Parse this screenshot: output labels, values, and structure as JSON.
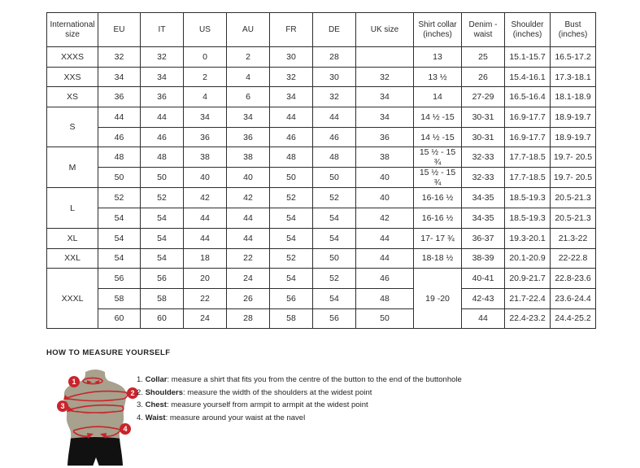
{
  "size_chart": {
    "headers": [
      "International size",
      "EU",
      "IT",
      "US",
      "AU",
      "FR",
      "DE",
      "UK size",
      "Shirt collar (inches)",
      "Denim - waist",
      "Shoulder (inches)",
      "Bust (inches)"
    ],
    "groups": [
      {
        "size": "XXXS",
        "rows": [
          [
            "32",
            "32",
            "0",
            "2",
            "30",
            "28",
            "",
            "13",
            "25",
            "15.1-15.7",
            "16.5-17.2"
          ]
        ]
      },
      {
        "size": "XXS",
        "rows": [
          [
            "34",
            "34",
            "2",
            "4",
            "32",
            "30",
            "32",
            "13 ½",
            "26",
            "15.4-16.1",
            "17.3-18.1"
          ]
        ]
      },
      {
        "size": "XS",
        "rows": [
          [
            "36",
            "36",
            "4",
            "6",
            "34",
            "32",
            "34",
            "14",
            "27-29",
            "16.5-16.4",
            "18.1-18.9"
          ]
        ]
      },
      {
        "size": "S",
        "rows": [
          [
            "44",
            "44",
            "34",
            "34",
            "44",
            "44",
            "34",
            "14 ½ -15",
            "30-31",
            "16.9-17.7",
            "18.9-19.7"
          ],
          [
            "46",
            "46",
            "36",
            "36",
            "46",
            "46",
            "36",
            "14 ½ -15",
            "30-31",
            "16.9-17.7",
            "18.9-19.7"
          ]
        ]
      },
      {
        "size": "M",
        "rows": [
          [
            "48",
            "48",
            "38",
            "38",
            "48",
            "48",
            "38",
            "15 ½ - 15 ¾",
            "32-33",
            "17.7-18.5",
            "19.7- 20.5"
          ],
          [
            "50",
            "50",
            "40",
            "40",
            "50",
            "50",
            "40",
            "15 ½ - 15 ¾",
            "32-33",
            "17.7-18.5",
            "19.7- 20.5"
          ]
        ]
      },
      {
        "size": "L",
        "rows": [
          [
            "52",
            "52",
            "42",
            "42",
            "52",
            "52",
            "40",
            "16-16 ½",
            "34-35",
            "18.5-19.3",
            "20.5-21.3"
          ],
          [
            "54",
            "54",
            "44",
            "44",
            "54",
            "54",
            "42",
            "16-16 ½",
            "34-35",
            "18.5-19.3",
            "20.5-21.3"
          ]
        ]
      },
      {
        "size": "XL",
        "rows": [
          [
            "54",
            "54",
            "44",
            "44",
            "54",
            "54",
            "44",
            "17- 17 ¾",
            "36-37",
            "19.3-20.1",
            "21.3-22"
          ]
        ]
      },
      {
        "size": "XXL",
        "rows": [
          [
            "54",
            "54",
            "18",
            "22",
            "52",
            "50",
            "44",
            "18-18 ½",
            "38-39",
            "20.1-20.9",
            "22-22.8"
          ]
        ]
      },
      {
        "size": "XXXL",
        "collar_merged": "19 -20",
        "rows": [
          [
            "56",
            "56",
            "20",
            "24",
            "54",
            "52",
            "46",
            "",
            "40-41",
            "20.9-21.7",
            "22.8-23.6"
          ],
          [
            "58",
            "58",
            "22",
            "26",
            "56",
            "54",
            "48",
            "",
            "42-43",
            "21.7-22.4",
            "23.6-24.4"
          ],
          [
            "60",
            "60",
            "24",
            "28",
            "58",
            "56",
            "50",
            "",
            "44",
            "22.4-23.2",
            "24.4-25.2"
          ]
        ]
      }
    ]
  },
  "measure": {
    "title": "HOW TO MEASURE YOURSELF",
    "items": [
      {
        "num": "1.",
        "term": "Collar",
        "desc": ": measure a shirt that fits you from the centre of the button to the end of the buttonhole"
      },
      {
        "num": "2.",
        "term": "Shoulders",
        "desc": ": measure the width of the shoulders at the widest point"
      },
      {
        "num": "3.",
        "term": "Chest",
        "desc": ": measure yourself from armpit to armpit at the widest point"
      },
      {
        "num": "4.",
        "term": "Waist",
        "desc": ": measure around your waist at the navel"
      }
    ],
    "figure": {
      "badges": [
        "1",
        "2",
        "3",
        "4"
      ]
    }
  },
  "colors": {
    "accent_red": "#c9242b",
    "torso_olive": "#a7a18d",
    "shorts_black": "#111111",
    "table_border": "#2e2e2e"
  }
}
